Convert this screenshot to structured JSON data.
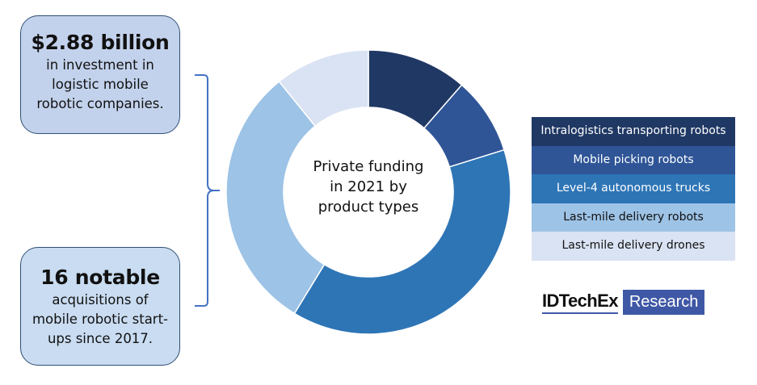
{
  "stats": [
    {
      "headline": "$2.88 billion",
      "lines": [
        "in investment in",
        "logistic mobile",
        "robotic companies."
      ]
    },
    {
      "headline": "16 notable",
      "lines": [
        "acquisitions of",
        "mobile robotic start-",
        "ups since 2017."
      ]
    }
  ],
  "chart_data": {
    "type": "pie",
    "subtype": "donut",
    "title": "Private funding in 2021 by product types",
    "categories": [
      "Intralogistics transporting robots",
      "Mobile picking robots",
      "Level-4 autonomous trucks",
      "Last-mile delivery robots",
      "Last-mile delivery drones"
    ],
    "values": [
      11.4,
      8.8,
      38.5,
      30.5,
      10.8
    ],
    "unit": "% of private funding (estimated from slice angles)",
    "colors": [
      "#203864",
      "#2f5597",
      "#2e75b6",
      "#9dc3e6",
      "#dae3f3"
    ],
    "start_angle_deg": 0,
    "direction": "clockwise",
    "legend_position": "right"
  },
  "legend": {
    "items": [
      {
        "label": "Intralogistics transporting robots",
        "bg": "#203864",
        "fg": "#ffffff"
      },
      {
        "label": "Mobile picking robots",
        "bg": "#2f5597",
        "fg": "#ffffff"
      },
      {
        "label": "Level-4 autonomous trucks",
        "bg": "#2e75b6",
        "fg": "#ffffff"
      },
      {
        "label": "Last-mile delivery robots",
        "bg": "#9dc3e6",
        "fg": "#111111"
      },
      {
        "label": "Last-mile delivery drones",
        "bg": "#dae3f3",
        "fg": "#111111"
      }
    ]
  },
  "center_label": [
    "Private funding",
    "in 2021 by",
    "product types"
  ],
  "logo": {
    "main": "IDTechEx",
    "badge": "Research"
  },
  "colors": {
    "brace": "#4472c4",
    "box_border": "#2f4f75"
  }
}
